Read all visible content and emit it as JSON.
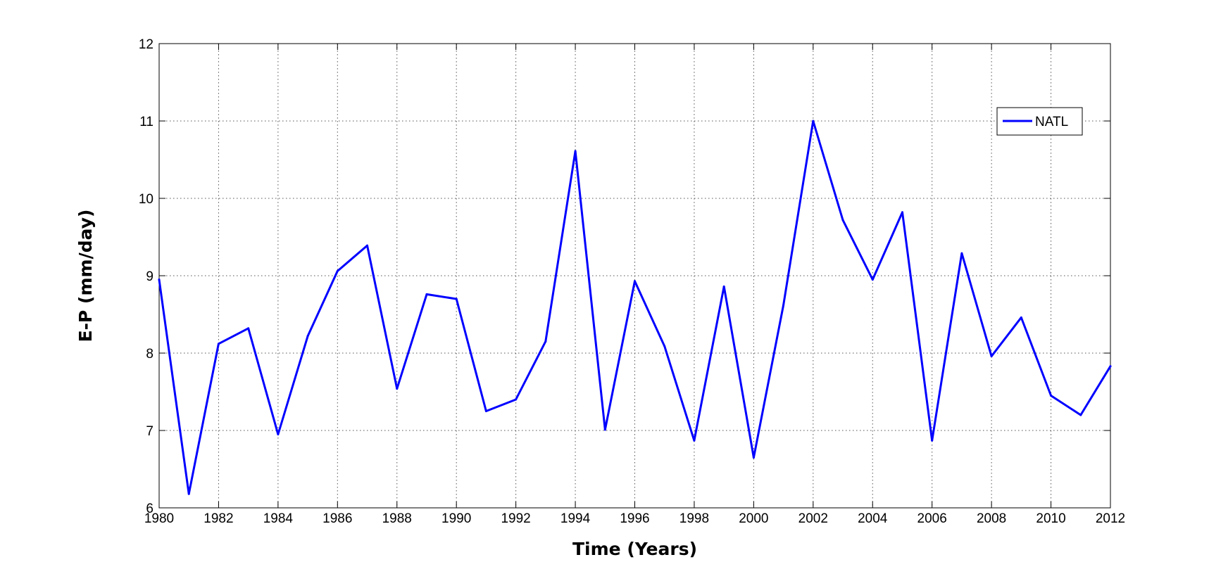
{
  "chart_data": {
    "type": "line",
    "title": "",
    "xlabel": "Time (Years)",
    "ylabel": "E-P (mm/day)",
    "xlim": [
      1980,
      2012
    ],
    "ylim": [
      6,
      12
    ],
    "x_ticks": [
      1980,
      1982,
      1984,
      1986,
      1988,
      1990,
      1992,
      1994,
      1996,
      1998,
      2000,
      2002,
      2004,
      2006,
      2008,
      2010,
      2012
    ],
    "y_ticks": [
      6,
      7,
      8,
      9,
      10,
      11,
      12
    ],
    "grid": true,
    "legend_position": "top-right",
    "series": [
      {
        "name": "NATL",
        "color": "#0000ff",
        "x": [
          1980,
          1981,
          1982,
          1983,
          1984,
          1985,
          1986,
          1987,
          1988,
          1989,
          1990,
          1991,
          1992,
          1993,
          1994,
          1995,
          1996,
          1997,
          1998,
          1999,
          2000,
          2001,
          2002,
          2003,
          2004,
          2005,
          2006,
          2007,
          2008,
          2009,
          2010,
          2011,
          2012
        ],
        "values": [
          8.95,
          6.18,
          8.12,
          8.32,
          6.95,
          8.22,
          9.06,
          9.39,
          7.54,
          8.76,
          8.7,
          7.25,
          7.4,
          8.15,
          10.61,
          7.01,
          8.93,
          8.09,
          6.87,
          8.86,
          6.65,
          8.62,
          11.0,
          9.72,
          8.95,
          9.82,
          6.87,
          9.29,
          7.96,
          8.46,
          7.45,
          7.2,
          7.83
        ]
      }
    ]
  }
}
